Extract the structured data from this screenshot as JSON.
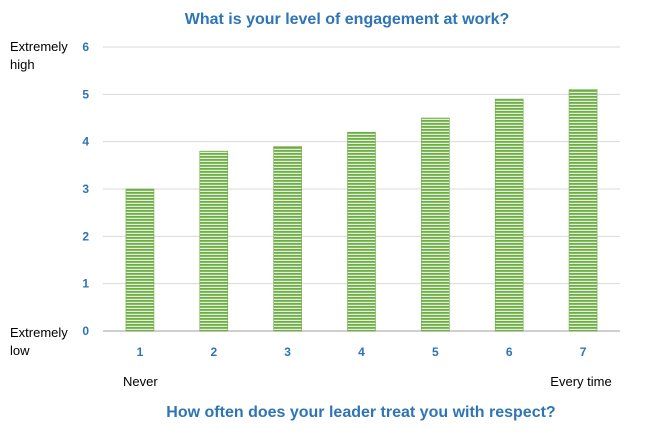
{
  "chart_data": {
    "type": "bar",
    "title": "What is your level of engagement at work?",
    "xlabel": "How often does your leader treat you with respect?",
    "ylabel": "",
    "categories": [
      "1",
      "2",
      "3",
      "4",
      "5",
      "6",
      "7"
    ],
    "values": [
      3.0,
      3.8,
      3.9,
      4.2,
      4.5,
      4.9,
      5.1
    ],
    "ylim": [
      0,
      6
    ],
    "yticks": [
      "0",
      "1",
      "2",
      "3",
      "4",
      "5",
      "6"
    ],
    "y_top_label": [
      "Extremely",
      "high"
    ],
    "y_bottom_label": [
      "Extremely",
      "low"
    ],
    "x_start_label": "Never",
    "x_end_label": "Every time",
    "grid": true,
    "legend": "none"
  },
  "colors": {
    "title": "#2f75b5",
    "tick": "#2e74b5",
    "bar": "#70ad47",
    "bar_light": "#e2efd9",
    "grid": "#d9d9d9",
    "axis": "#bfbfbf"
  }
}
